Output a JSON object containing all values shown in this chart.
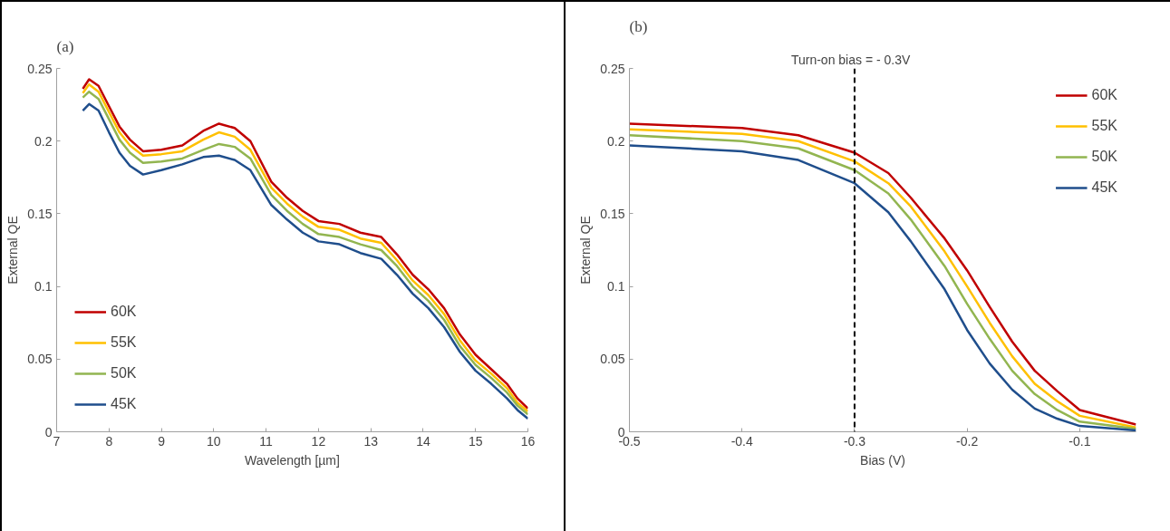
{
  "chart_data": [
    {
      "type": "line",
      "title": "(a)",
      "xlabel": "Wavelength [µm]",
      "ylabel": "External QE",
      "x": [
        7.5,
        7.62,
        7.8,
        8.0,
        8.2,
        8.4,
        8.65,
        9.0,
        9.4,
        9.8,
        10.1,
        10.4,
        10.7,
        11.1,
        11.4,
        11.7,
        12.0,
        12.4,
        12.8,
        13.2,
        13.5,
        13.8,
        14.1,
        14.4,
        14.7,
        15.0,
        15.3,
        15.6,
        15.8,
        16.0
      ],
      "series": [
        {
          "name": "60K",
          "color": "#c00000",
          "values": [
            0.236,
            0.2425,
            0.238,
            0.224,
            0.21,
            0.201,
            0.193,
            0.194,
            0.197,
            0.207,
            0.212,
            0.209,
            0.2,
            0.172,
            0.161,
            0.152,
            0.145,
            0.143,
            0.137,
            0.134,
            0.122,
            0.108,
            0.098,
            0.085,
            0.067,
            0.053,
            0.043,
            0.033,
            0.023,
            0.016
          ]
        },
        {
          "name": "55K",
          "color": "#ffc000",
          "values": [
            0.233,
            0.239,
            0.234,
            0.22,
            0.206,
            0.197,
            0.19,
            0.191,
            0.193,
            0.201,
            0.206,
            0.203,
            0.194,
            0.168,
            0.157,
            0.148,
            0.141,
            0.139,
            0.133,
            0.13,
            0.118,
            0.104,
            0.094,
            0.081,
            0.063,
            0.049,
            0.04,
            0.03,
            0.02,
            0.014
          ]
        },
        {
          "name": "50K",
          "color": "#92b550",
          "values": [
            0.23,
            0.234,
            0.229,
            0.215,
            0.201,
            0.192,
            0.185,
            0.186,
            0.188,
            0.194,
            0.198,
            0.196,
            0.188,
            0.163,
            0.152,
            0.143,
            0.136,
            0.134,
            0.129,
            0.125,
            0.114,
            0.1,
            0.09,
            0.077,
            0.059,
            0.046,
            0.037,
            0.027,
            0.018,
            0.012
          ]
        },
        {
          "name": "45K",
          "color": "#1f4e8c",
          "values": [
            0.221,
            0.2255,
            0.221,
            0.206,
            0.192,
            0.183,
            0.177,
            0.18,
            0.184,
            0.189,
            0.19,
            0.187,
            0.18,
            0.156,
            0.146,
            0.137,
            0.131,
            0.129,
            0.123,
            0.119,
            0.108,
            0.095,
            0.085,
            0.072,
            0.055,
            0.042,
            0.033,
            0.023,
            0.015,
            0.009
          ]
        }
      ],
      "xlim": [
        7,
        16
      ],
      "xticks": [
        7,
        8,
        9,
        10,
        11,
        12,
        13,
        14,
        15,
        16
      ],
      "ylim": [
        0,
        0.25
      ],
      "yticks": [
        0,
        0.05,
        0.1,
        0.15,
        0.2,
        0.25
      ],
      "grid": false,
      "legend": "bottom left",
      "marker": "none",
      "line_style": "solid"
    },
    {
      "type": "line",
      "title": "(b)",
      "xlabel": "Bias (V)",
      "ylabel": "External QE",
      "x": [
        -0.5,
        -0.4,
        -0.35,
        -0.3,
        -0.27,
        -0.25,
        -0.22,
        -0.2,
        -0.18,
        -0.16,
        -0.14,
        -0.12,
        -0.1,
        -0.05
      ],
      "series": [
        {
          "name": "60K",
          "color": "#c00000",
          "values": [
            0.212,
            0.209,
            0.204,
            0.192,
            0.178,
            0.161,
            0.133,
            0.111,
            0.086,
            0.062,
            0.042,
            0.028,
            0.015,
            0.005
          ]
        },
        {
          "name": "55K",
          "color": "#ffc000",
          "values": [
            0.208,
            0.205,
            0.2,
            0.186,
            0.171,
            0.155,
            0.124,
            0.1,
            0.075,
            0.052,
            0.033,
            0.021,
            0.011,
            0.003
          ]
        },
        {
          "name": "50K",
          "color": "#92b550",
          "values": [
            0.204,
            0.2,
            0.195,
            0.18,
            0.164,
            0.146,
            0.114,
            0.088,
            0.064,
            0.042,
            0.026,
            0.015,
            0.007,
            0.002
          ]
        },
        {
          "name": "45K",
          "color": "#1f4e8c",
          "values": [
            0.197,
            0.193,
            0.187,
            0.171,
            0.151,
            0.131,
            0.098,
            0.07,
            0.047,
            0.029,
            0.016,
            0.009,
            0.004,
            0.001
          ]
        }
      ],
      "xlim": [
        -0.5,
        -0.05
      ],
      "xticks": [
        -0.5,
        -0.4,
        -0.3,
        -0.2,
        -0.1
      ],
      "ylim": [
        0,
        0.25
      ],
      "yticks": [
        0,
        0.05,
        0.1,
        0.15,
        0.2,
        0.25
      ],
      "grid": false,
      "legend": "top right",
      "marker": "none",
      "line_style": "solid",
      "ref_lines": [
        {
          "axis": "x",
          "value": -0.3,
          "label": "Turn-on bias = - 0.3V",
          "color": "#000000",
          "line_style": "dashed"
        }
      ]
    }
  ]
}
